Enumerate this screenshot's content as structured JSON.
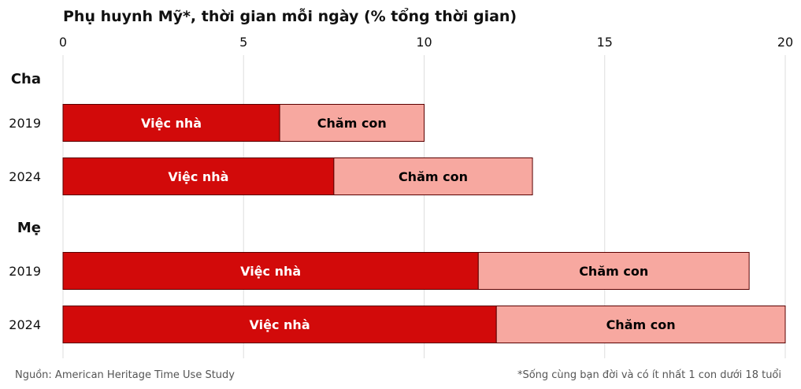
{
  "chart_data": {
    "type": "bar",
    "orientation": "horizontal",
    "stacked": true,
    "title": "Phụ huynh Mỹ*, thời gian mỗi ngày (% tổng thời gian)",
    "xlim": [
      0,
      20
    ],
    "xticks": [
      0,
      5,
      10,
      15,
      20
    ],
    "grid": true,
    "groups": [
      {
        "label": "Cha",
        "rows": [
          {
            "label": "2019",
            "values": [
              6.0,
              4.0
            ]
          },
          {
            "label": "2024",
            "values": [
              7.5,
              5.5
            ]
          }
        ]
      },
      {
        "label": "Mẹ",
        "rows": [
          {
            "label": "2019",
            "values": [
              11.5,
              7.5
            ]
          },
          {
            "label": "2024",
            "values": [
              12.0,
              8.0
            ]
          }
        ]
      }
    ],
    "series": [
      {
        "name": "Việc nhà",
        "color": "#d20a0a",
        "text_color": "#ffffff"
      },
      {
        "name": "Chăm con",
        "color": "#f7a8a0",
        "text_color": "#000000"
      }
    ]
  },
  "footer": {
    "source": "Nguồn: American Heritage Time Use Study",
    "note": "*Sống cùng bạn đời và có ít nhất 1 con dưới 18 tuổi"
  }
}
